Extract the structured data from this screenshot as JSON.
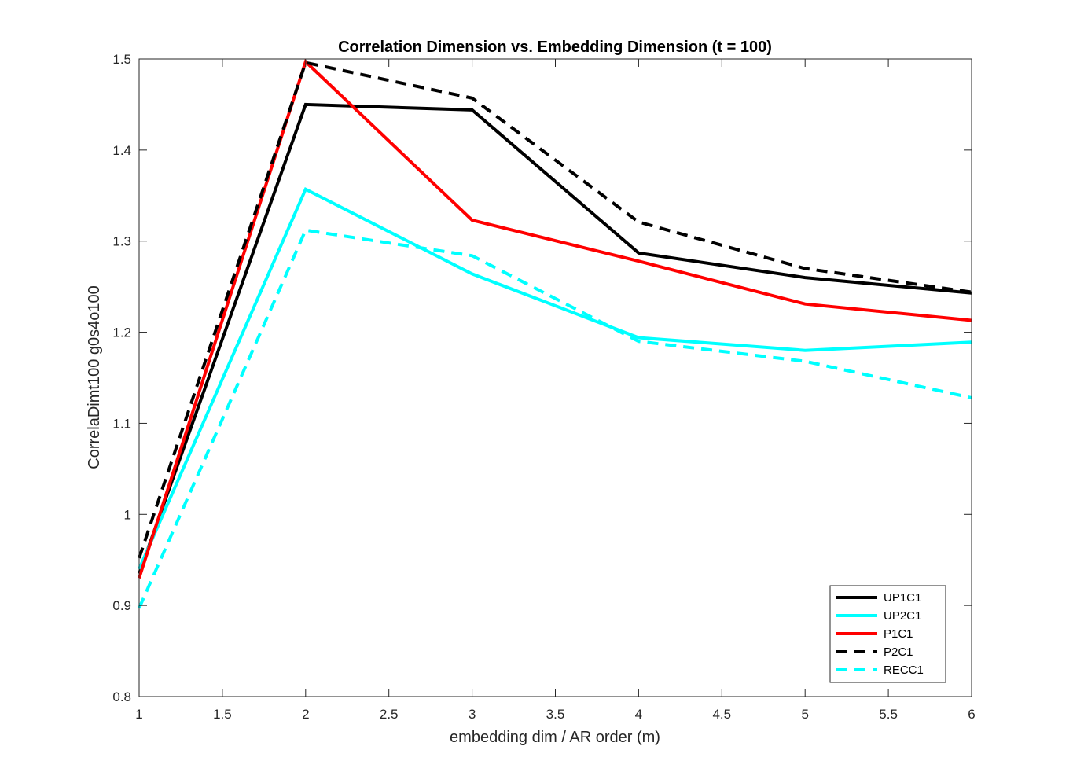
{
  "chart_data": {
    "type": "line",
    "title": "Correlation Dimension vs. Embedding Dimension (t = 100)",
    "xlabel": "embedding dim / AR order (m)",
    "ylabel": "CorrelaDimt100 g0s4o100",
    "xlim": [
      1,
      6
    ],
    "ylim": [
      0.8,
      1.5
    ],
    "x_ticks": [
      "1",
      "1.5",
      "2",
      "2.5",
      "3",
      "3.5",
      "4",
      "4.5",
      "5",
      "5.5",
      "6"
    ],
    "y_ticks": [
      "0.8",
      "0.9",
      "1",
      "1.1",
      "1.2",
      "1.3",
      "1.4",
      "1.5"
    ],
    "grid": false,
    "legend_position": "bottom-right",
    "x": [
      1,
      2,
      3,
      4,
      5,
      6
    ],
    "series": [
      {
        "name": "UP1C1",
        "color": "#000000",
        "dash": "solid",
        "values": [
          0.935,
          1.45,
          1.444,
          1.287,
          1.26,
          1.243
        ]
      },
      {
        "name": "UP2C1",
        "color": "#00ffff",
        "dash": "solid",
        "values": [
          0.94,
          1.357,
          1.264,
          1.194,
          1.18,
          1.189
        ]
      },
      {
        "name": "P1C1",
        "color": "#ff0000",
        "dash": "solid",
        "values": [
          0.93,
          1.497,
          1.323,
          1.278,
          1.231,
          1.213
        ]
      },
      {
        "name": "P2C1",
        "color": "#000000",
        "dash": "dashed",
        "values": [
          0.952,
          1.496,
          1.457,
          1.321,
          1.27,
          1.244
        ]
      },
      {
        "name": "RECC1",
        "color": "#00ffff",
        "dash": "dashed",
        "values": [
          0.897,
          1.312,
          1.284,
          1.19,
          1.168,
          1.128
        ]
      }
    ]
  }
}
